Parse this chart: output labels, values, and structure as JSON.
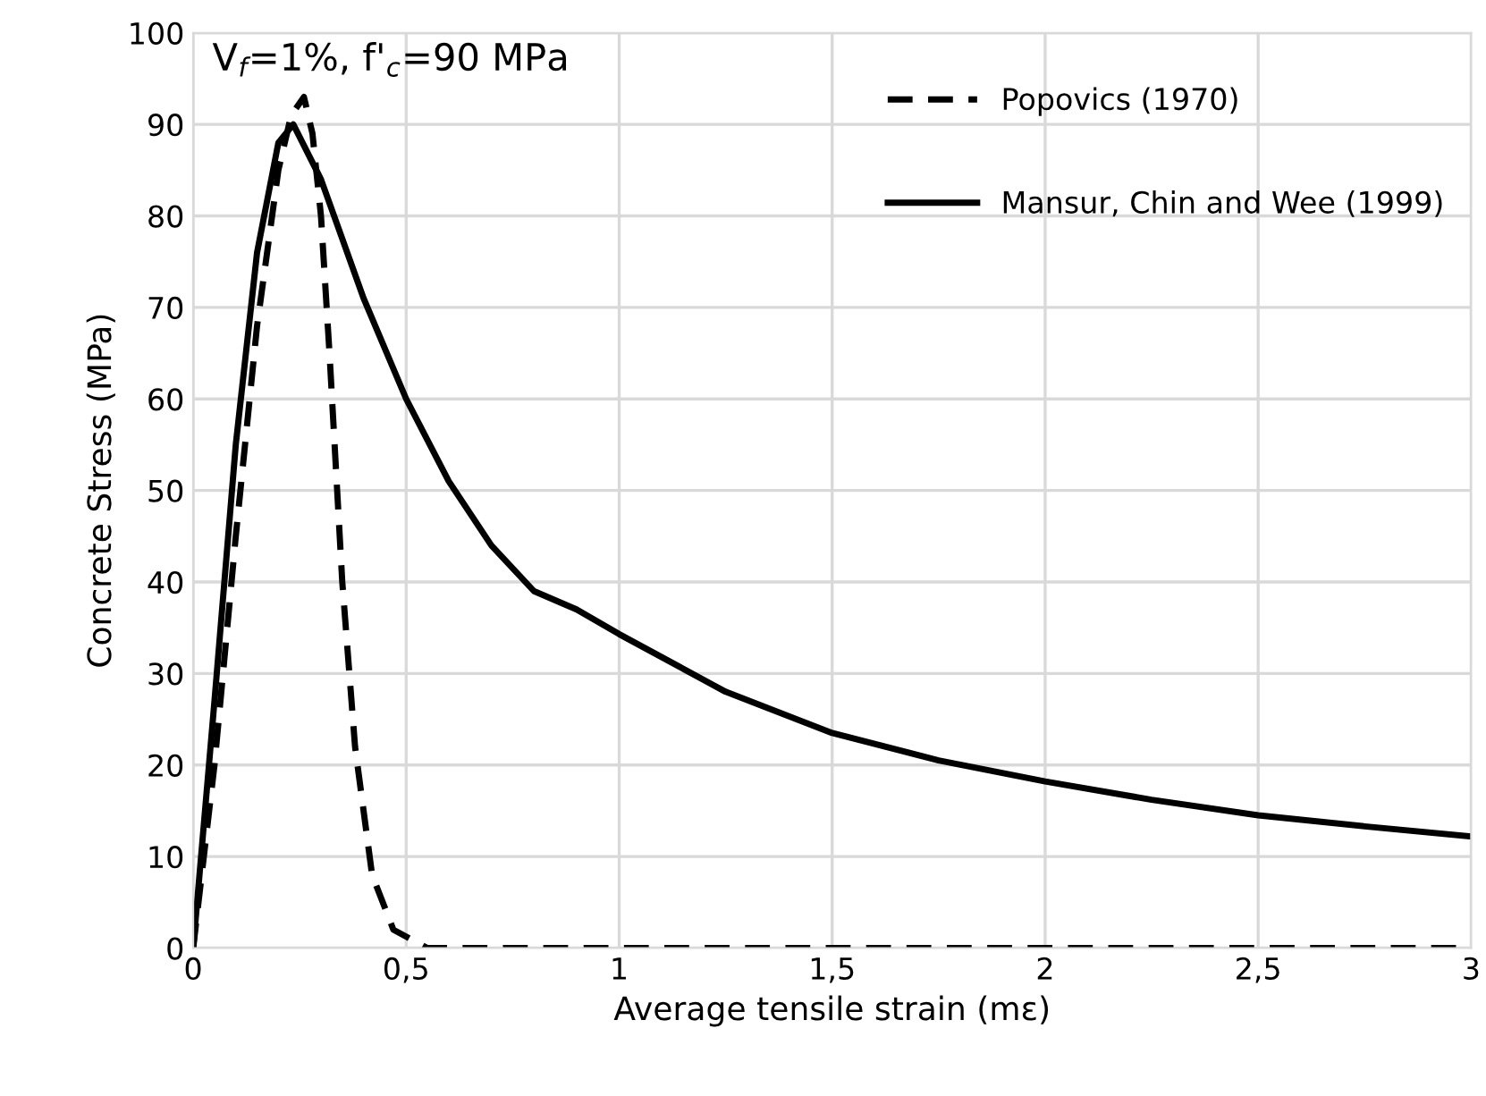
{
  "chart_data": {
    "type": "line",
    "xlabel": "Average tensile strain (mε)",
    "ylabel": "Concrete Stress (MPa)",
    "annotations": [
      "V$_{f}$=1%, f'$_{c}$=90 MPa"
    ],
    "xlim": [
      0,
      3
    ],
    "xticks": [
      {
        "value": 0,
        "label": "0"
      },
      {
        "value": 0.5,
        "label": "0,5"
      },
      {
        "value": 1,
        "label": "1"
      },
      {
        "value": 1.5,
        "label": "1,5"
      },
      {
        "value": 2,
        "label": "2"
      },
      {
        "value": 2.5,
        "label": "2,5"
      },
      {
        "value": 3,
        "label": "3"
      }
    ],
    "ylim": [
      0,
      100
    ],
    "yticks": [
      0,
      10,
      20,
      30,
      40,
      50,
      60,
      70,
      80,
      90,
      100
    ],
    "grid": true,
    "legend": "top right",
    "series": [
      {
        "name": "Popovics (1970)",
        "color": "#000000",
        "line_style": "dashed",
        "x": [
          0,
          0.05,
          0.1,
          0.15,
          0.2,
          0.23,
          0.26,
          0.28,
          0.3,
          0.32,
          0.35,
          0.38,
          0.42,
          0.47,
          0.55,
          1,
          1.5,
          2,
          2.5,
          3
        ],
        "values": [
          0,
          20,
          45,
          68,
          85,
          91,
          93,
          89,
          80,
          65,
          40,
          22,
          8,
          2,
          0,
          0,
          0,
          0,
          0,
          0
        ]
      },
      {
        "name": "Mansur, Chin and Wee (1999)",
        "color": "#000000",
        "line_style": "solid",
        "x": [
          0,
          0.05,
          0.1,
          0.15,
          0.2,
          0.235,
          0.3,
          0.4,
          0.5,
          0.6,
          0.7,
          0.8,
          0.9,
          1,
          1.25,
          1.5,
          1.75,
          2,
          2.25,
          2.5,
          2.75,
          3
        ],
        "values": [
          0,
          27,
          55,
          76,
          88,
          90,
          84,
          71,
          60,
          51,
          44,
          39,
          37,
          34.3,
          28,
          23.5,
          20.5,
          18.2,
          16.2,
          14.5,
          13.3,
          12.2
        ]
      }
    ]
  }
}
